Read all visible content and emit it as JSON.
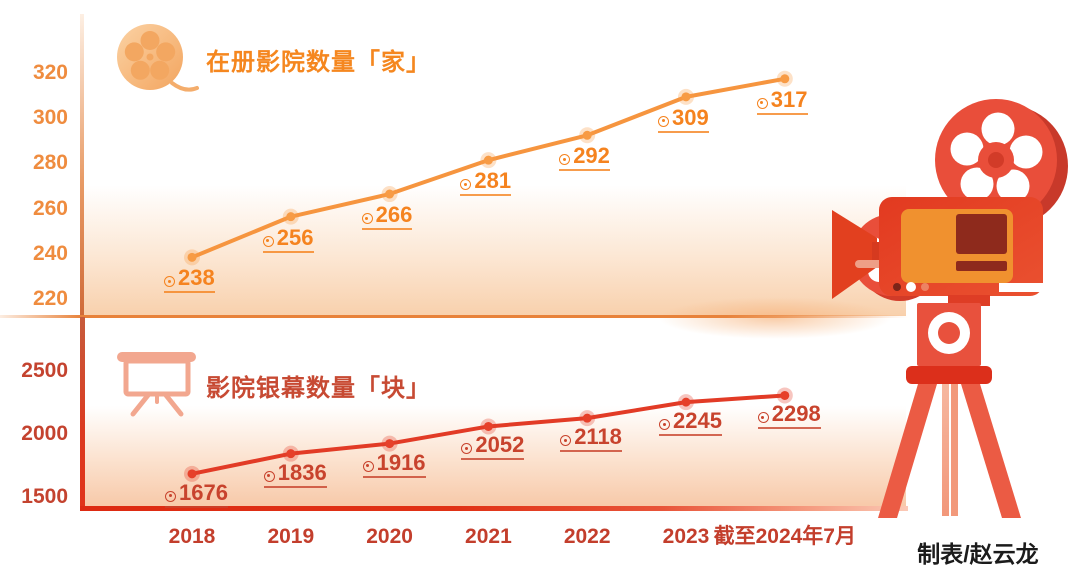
{
  "credit": "制表/赵云龙",
  "x_axis": {
    "labels": [
      "2018",
      "2019",
      "2020",
      "2021",
      "2022",
      "2023",
      "截至2024年7月"
    ],
    "color": "#C33E2C"
  },
  "chart_data": [
    {
      "type": "line",
      "title": "在册影院数量「家」",
      "icon": "film-reel-icon",
      "categories": [
        "2018",
        "2019",
        "2020",
        "2021",
        "2022",
        "2023",
        "截至2024年7月"
      ],
      "values": [
        238,
        256,
        266,
        281,
        292,
        309,
        317
      ],
      "y_ticks": [
        320,
        300,
        280,
        260,
        240,
        220
      ],
      "ylim": [
        215,
        330
      ],
      "grid": false,
      "legend": "none",
      "colors": {
        "line": "#F6953F",
        "marker": "#F79B45",
        "value_label": "#F5831F",
        "tick": "#EF8C3F",
        "title": "#F5871F",
        "axis": "#CF6A38"
      }
    },
    {
      "type": "line",
      "title": "影院银幕数量「块」",
      "icon": "projection-screen-icon",
      "categories": [
        "2018",
        "2019",
        "2020",
        "2021",
        "2022",
        "2023",
        "截至2024年7月"
      ],
      "values": [
        1676,
        1836,
        1916,
        2052,
        2118,
        2245,
        2298
      ],
      "y_ticks": [
        2500,
        2000,
        1500
      ],
      "ylim": [
        1450,
        2600
      ],
      "grid": false,
      "legend": "none",
      "colors": {
        "line": "#E23B26",
        "marker": "#E6402A",
        "value_label": "#C8432D",
        "tick": "#C4432F",
        "title": "#C74A33",
        "axis": "#DC3A20"
      }
    }
  ],
  "illustration": {
    "name": "film-projector",
    "primary_color": "#E84C35"
  }
}
